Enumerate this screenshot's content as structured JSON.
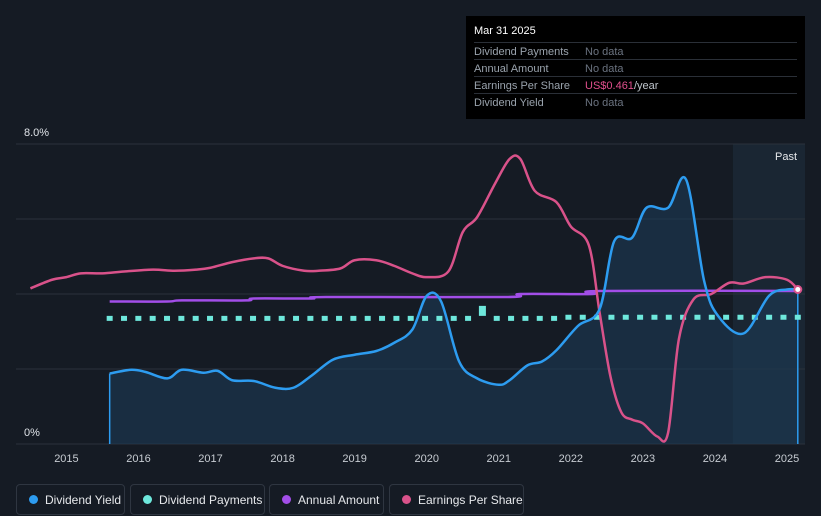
{
  "tooltip": {
    "date": "Mar 31 2025",
    "rows": [
      {
        "label": "Dividend Payments",
        "value": "No data"
      },
      {
        "label": "Annual Amount",
        "value": "No data"
      },
      {
        "label": "Earnings Per Share",
        "value": "US$0.461",
        "unit": "/year"
      },
      {
        "label": "Dividend Yield",
        "value": "No data"
      }
    ]
  },
  "colors": {
    "dividend_yield": "#2d9cf0",
    "dividend_payments": "#6ee8dc",
    "annual_amount": "#a24ee8",
    "eps": "#d9528a",
    "background": "#151b24"
  },
  "legend": [
    {
      "label": "Dividend Yield",
      "color": "#2d9cf0"
    },
    {
      "label": "Dividend Payments",
      "color": "#6ee8dc"
    },
    {
      "label": "Annual Amount",
      "color": "#a24ee8"
    },
    {
      "label": "Earnings Per Share",
      "color": "#d9528a"
    }
  ],
  "chart_data": {
    "type": "line",
    "y_axis": {
      "top_label": "8.0%",
      "bottom_label": "0%",
      "ylim": [
        0,
        8
      ]
    },
    "x_ticks": [
      "2015",
      "2016",
      "2017",
      "2018",
      "2019",
      "2020",
      "2021",
      "2022",
      "2023",
      "2024",
      "2025"
    ],
    "xlim": [
      2014.3,
      2025.25
    ],
    "forecast_start": 2024.25,
    "past_label": "Past",
    "series": [
      {
        "name": "Dividend Yield",
        "unit": "%",
        "x": [
          2015.6,
          2015.9,
          2016.1,
          2016.4,
          2016.6,
          2016.9,
          2017.1,
          2017.3,
          2017.6,
          2017.9,
          2018.15,
          2018.4,
          2018.7,
          2019.0,
          2019.3,
          2019.55,
          2019.8,
          2020.0,
          2020.2,
          2020.45,
          2020.7,
          2021.0,
          2021.15,
          2021.4,
          2021.6,
          2021.8,
          2022.1,
          2022.4,
          2022.6,
          2022.85,
          2023.05,
          2023.35,
          2023.6,
          2023.85,
          2024.05,
          2024.4,
          2024.75,
          2025.0,
          2025.15
        ],
        "y": [
          1.88,
          1.98,
          1.92,
          1.75,
          1.98,
          1.9,
          1.95,
          1.7,
          1.68,
          1.5,
          1.5,
          1.82,
          2.25,
          2.38,
          2.48,
          2.7,
          3.05,
          3.95,
          3.8,
          2.2,
          1.75,
          1.58,
          1.7,
          2.1,
          2.2,
          2.5,
          3.15,
          3.6,
          5.4,
          5.5,
          6.3,
          6.3,
          7.05,
          4.35,
          3.4,
          2.95,
          3.95,
          4.12,
          4.12
        ]
      },
      {
        "name": "Annual Amount",
        "x": [
          2015.6,
          2016.4,
          2016.6,
          2017.5,
          2017.6,
          2018.4,
          2018.6,
          2021.1,
          2021.3,
          2022.3,
          2022.4,
          2025.15
        ],
        "y": [
          3.8,
          3.8,
          3.83,
          3.83,
          3.88,
          3.88,
          3.92,
          3.92,
          4.0,
          4.0,
          4.08,
          4.08
        ]
      },
      {
        "name": "Dividend Payments",
        "x_start": 2015.6,
        "x_end": 2025.15,
        "y": [
          3.35,
          3.35,
          3.35,
          3.35,
          3.35,
          3.35,
          3.35,
          3.35,
          3.35,
          3.35,
          3.35,
          3.35,
          3.35,
          3.35,
          3.35,
          3.35,
          3.35,
          3.35,
          3.35,
          3.35,
          3.35,
          3.35,
          3.35,
          3.35,
          3.35,
          3.35,
          3.55,
          3.35,
          3.35,
          3.35,
          3.35,
          3.35,
          3.38,
          3.38,
          3.38,
          3.38,
          3.38,
          3.38,
          3.38,
          3.38,
          3.38,
          3.38,
          3.38,
          3.38,
          3.38,
          3.38,
          3.38,
          3.38,
          3.38
        ]
      },
      {
        "name": "Earnings Per Share",
        "x": [
          2014.5,
          2014.8,
          2015.0,
          2015.2,
          2015.5,
          2015.8,
          2016.2,
          2016.5,
          2016.8,
          2017.0,
          2017.3,
          2017.6,
          2017.8,
          2018.0,
          2018.3,
          2018.5,
          2018.8,
          2019.0,
          2019.3,
          2019.55,
          2019.8,
          2020.0,
          2020.3,
          2020.5,
          2020.7,
          2020.95,
          2021.15,
          2021.3,
          2021.5,
          2021.8,
          2022.0,
          2022.25,
          2022.4,
          2022.55,
          2022.7,
          2022.85,
          2023.0,
          2023.2,
          2023.35,
          2023.5,
          2023.7,
          2023.95,
          2024.2,
          2024.4,
          2024.7,
          2025.0,
          2025.15
        ],
        "y": [
          4.15,
          4.38,
          4.45,
          4.55,
          4.55,
          4.6,
          4.65,
          4.62,
          4.65,
          4.7,
          4.85,
          4.95,
          4.95,
          4.75,
          4.62,
          4.62,
          4.68,
          4.9,
          4.9,
          4.75,
          4.55,
          4.45,
          4.6,
          5.65,
          6.05,
          6.95,
          7.6,
          7.6,
          6.75,
          6.45,
          5.8,
          5.3,
          3.5,
          1.8,
          0.85,
          0.65,
          0.55,
          0.2,
          0.3,
          2.8,
          3.85,
          4.0,
          4.3,
          4.28,
          4.45,
          4.38,
          4.12
        ]
      }
    ]
  }
}
